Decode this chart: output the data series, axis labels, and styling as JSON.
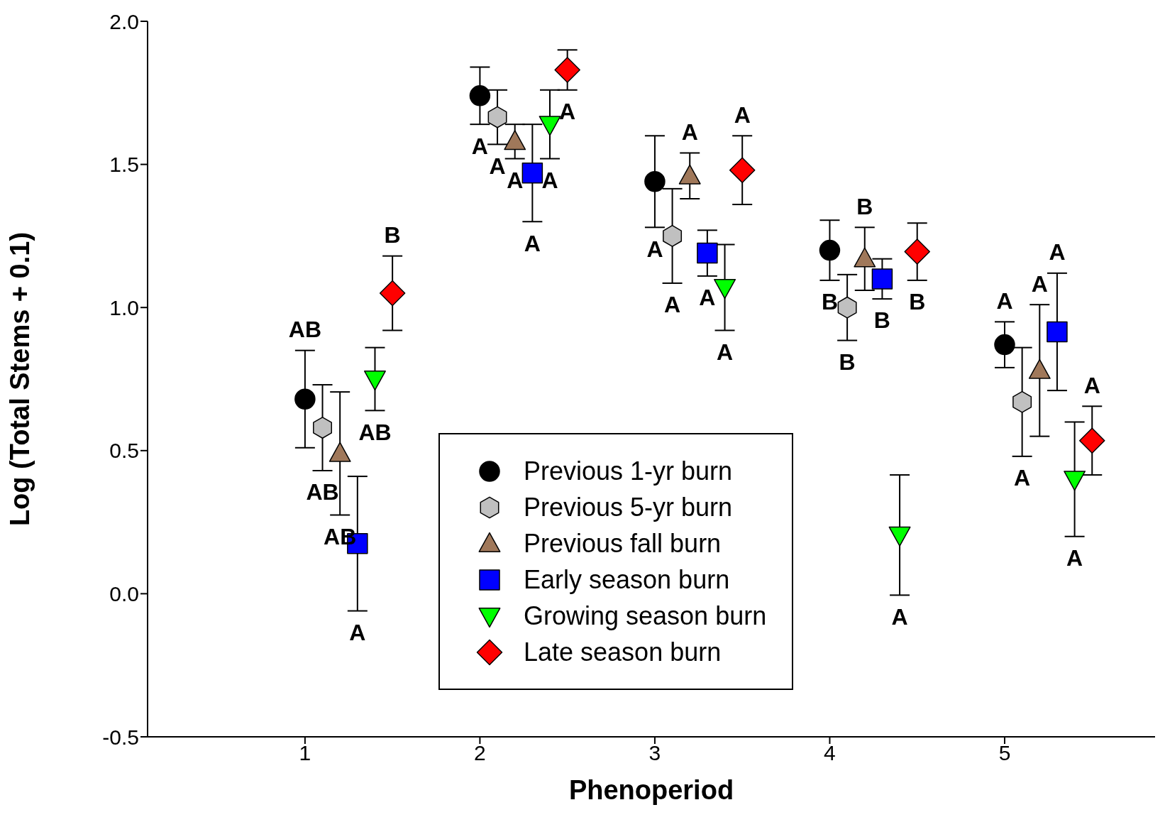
{
  "chart_data": {
    "type": "scatter",
    "xlabel": "Phenoperiod",
    "ylabel": "Log (Total Stems + 0.1)",
    "xlim": [
      0.1,
      5.86
    ],
    "xticks": [
      1,
      2,
      3,
      4,
      5
    ],
    "ylim": [
      -0.5,
      2.0
    ],
    "yticks": [
      {
        "value": -0.5,
        "label": "-0.5"
      },
      {
        "value": 0,
        "label": "0.0"
      },
      {
        "value": 0.5,
        "label": "0.5"
      },
      {
        "value": 1,
        "label": "1.0"
      },
      {
        "value": 1.5,
        "label": "1.5"
      },
      {
        "value": 2,
        "label": "2.0"
      }
    ],
    "grid": false,
    "legend": "bottom",
    "series": [
      {
        "name": "Previous 1-yr burn",
        "color": "#000000",
        "marker": "circle",
        "x": [
          1.0,
          2.0,
          3.0,
          4.0,
          5.0
        ],
        "values": [
          0.68,
          1.74,
          1.44,
          1.2,
          0.87
        ],
        "errors": [
          0.17,
          0.1,
          0.16,
          0.105,
          0.08
        ]
      },
      {
        "name": "Previous 5-yr burn",
        "color": "#c0c0c0",
        "x": [
          1.1,
          2.1,
          3.1,
          4.1,
          5.1
        ],
        "values": [
          0.58,
          1.665,
          1.25,
          1.0,
          0.67
        ],
        "errors": [
          0.15,
          0.095,
          0.165,
          0.115,
          0.19
        ]
      },
      {
        "name": "Previous fall burn",
        "color": "#a0785a",
        "marker": "triangle",
        "x": [
          1.2,
          2.2,
          3.2,
          4.2,
          5.2
        ],
        "values": [
          0.49,
          1.58,
          1.46,
          1.17,
          0.78
        ],
        "errors": [
          0.215,
          0.06,
          0.08,
          0.11,
          0.23
        ]
      },
      {
        "name": "Early season burn",
        "color": "#0000ff",
        "marker": "square",
        "x": [
          1.3,
          2.3,
          3.3,
          4.3,
          5.3
        ],
        "values": [
          0.175,
          1.47,
          1.19,
          1.1,
          0.915
        ],
        "errors": [
          0.235,
          0.17,
          0.08,
          0.07,
          0.205
        ]
      },
      {
        "name": "Growing season burn",
        "color": "#00ff00",
        "marker": "triangle-down",
        "x": [
          1.4,
          2.4,
          3.4,
          4.4,
          5.4
        ],
        "values": [
          0.75,
          1.64,
          1.07,
          0.205,
          0.4
        ],
        "errors": [
          0.11,
          0.12,
          0.15,
          0.21,
          0.2
        ]
      },
      {
        "name": "Late season burn",
        "color": "#ff0000",
        "marker": "diamond",
        "x": [
          1.5,
          2.5,
          3.5,
          4.5,
          5.5
        ],
        "values": [
          1.05,
          1.83,
          1.48,
          1.195,
          0.535
        ],
        "errors": [
          0.13,
          0.07,
          0.12,
          0.1,
          0.12
        ]
      }
    ],
    "annotations": [
      {
        "text": "AB",
        "x": 1.0,
        "y": 0.85
      },
      {
        "text": "AB",
        "x": 1.1,
        "y": 0.43
      },
      {
        "text": "AB",
        "x": 1.2,
        "y": 0.275
      },
      {
        "text": "A",
        "x": 1.3,
        "y": -0.06
      },
      {
        "text": "AB",
        "x": 1.4,
        "y": 0.64
      },
      {
        "text": "B",
        "x": 1.5,
        "y": 1.18
      },
      {
        "text": "A",
        "x": 2.0,
        "y": 1.64
      },
      {
        "text": "A",
        "x": 2.1,
        "y": 1.57
      },
      {
        "text": "A",
        "x": 2.2,
        "y": 1.52
      },
      {
        "text": "A",
        "x": 2.3,
        "y": 1.3
      },
      {
        "text": "A",
        "x": 2.4,
        "y": 1.52
      },
      {
        "text": "A",
        "x": 2.5,
        "y": 1.76
      },
      {
        "text": "A",
        "x": 3.0,
        "y": 1.28
      },
      {
        "text": "A",
        "x": 3.1,
        "y": 1.085
      },
      {
        "text": "A",
        "x": 3.2,
        "y": 1.54
      },
      {
        "text": "A",
        "x": 3.3,
        "y": 1.11
      },
      {
        "text": "A",
        "x": 3.4,
        "y": 0.92
      },
      {
        "text": "A",
        "x": 3.5,
        "y": 1.6
      },
      {
        "text": "B",
        "x": 4.0,
        "y": 1.095
      },
      {
        "text": "B",
        "x": 4.1,
        "y": 0.885
      },
      {
        "text": "B",
        "x": 4.2,
        "y": 1.28
      },
      {
        "text": "B",
        "x": 4.3,
        "y": 1.03
      },
      {
        "text": "A",
        "x": 4.4,
        "y": -0.005
      },
      {
        "text": "B",
        "x": 4.5,
        "y": 1.095
      },
      {
        "text": "A",
        "x": 5.0,
        "y": 0.95
      },
      {
        "text": "A",
        "x": 5.1,
        "y": 0.48
      },
      {
        "text": "A",
        "x": 5.2,
        "y": 1.01
      },
      {
        "text": "A",
        "x": 5.3,
        "y": 1.12
      },
      {
        "text": "A",
        "x": 5.4,
        "y": 0.2
      },
      {
        "text": "A",
        "x": 5.5,
        "y": 0.655
      }
    ]
  }
}
